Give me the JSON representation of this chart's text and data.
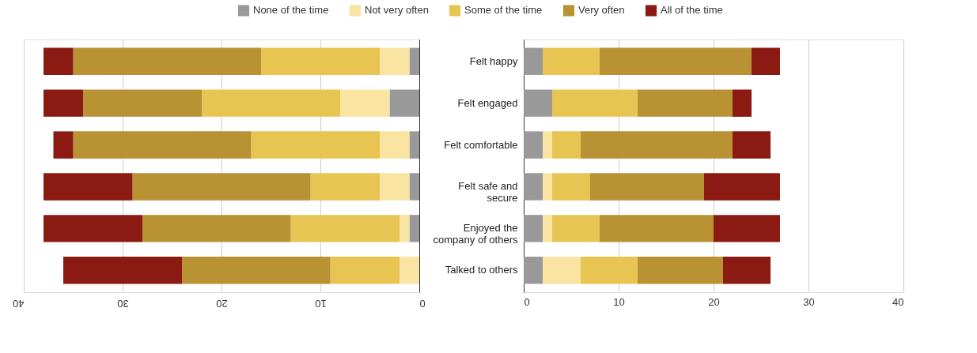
{
  "chart_data": [
    {
      "type": "bar",
      "orientation": "horizontal",
      "stacked": true,
      "categories": [
        null,
        null,
        null,
        null,
        null,
        null
      ],
      "xlim": [
        40,
        0
      ],
      "xticks": [
        40,
        30,
        20,
        10,
        0
      ],
      "grid": "x",
      "legend": "top",
      "tick_labels": "x",
      "series": [
        {
          "name": "None of the time",
          "color": "#999999",
          "values": [
            1,
            3,
            1,
            1,
            1,
            0
          ]
        },
        {
          "name": "Not very often",
          "color": "#f9e4a2",
          "values": [
            3,
            5,
            3,
            3,
            1,
            2
          ]
        },
        {
          "name": "Some of the time",
          "color": "#e8c453",
          "values": [
            12,
            14,
            13,
            7,
            11,
            7
          ]
        },
        {
          "name": "Very often",
          "color": "#b89233",
          "values": [
            19,
            12,
            18,
            18,
            15,
            15
          ]
        },
        {
          "name": "All of the time",
          "color": "#8b1a12",
          "values": [
            3,
            4,
            2,
            9,
            10,
            12
          ]
        }
      ]
    },
    {
      "type": "bar",
      "orientation": "horizontal",
      "stacked": true,
      "categories": [
        "Felt happy",
        "Felt engaged",
        "Felt comfortable",
        "Felt safe and secure",
        "Enjoyed the company of others",
        "Talked to others"
      ],
      "xlim": [
        0,
        40
      ],
      "xticks": [
        0,
        10,
        20,
        30,
        40
      ],
      "grid": "x",
      "legend": "top",
      "series": [
        {
          "name": "None of the time",
          "color": "#999999",
          "values": [
            2,
            3,
            2,
            2,
            2,
            2
          ]
        },
        {
          "name": "Not very often",
          "color": "#f9e4a2",
          "values": [
            0,
            0,
            1,
            1,
            1,
            4
          ]
        },
        {
          "name": "Some of the time",
          "color": "#e8c453",
          "values": [
            6,
            9,
            3,
            4,
            5,
            6
          ]
        },
        {
          "name": "Very often",
          "color": "#b89233",
          "values": [
            16,
            10,
            16,
            12,
            12,
            9
          ]
        },
        {
          "name": "All of the time",
          "color": "#8b1a12",
          "values": [
            3,
            2,
            4,
            8,
            7,
            5
          ]
        }
      ]
    }
  ]
}
